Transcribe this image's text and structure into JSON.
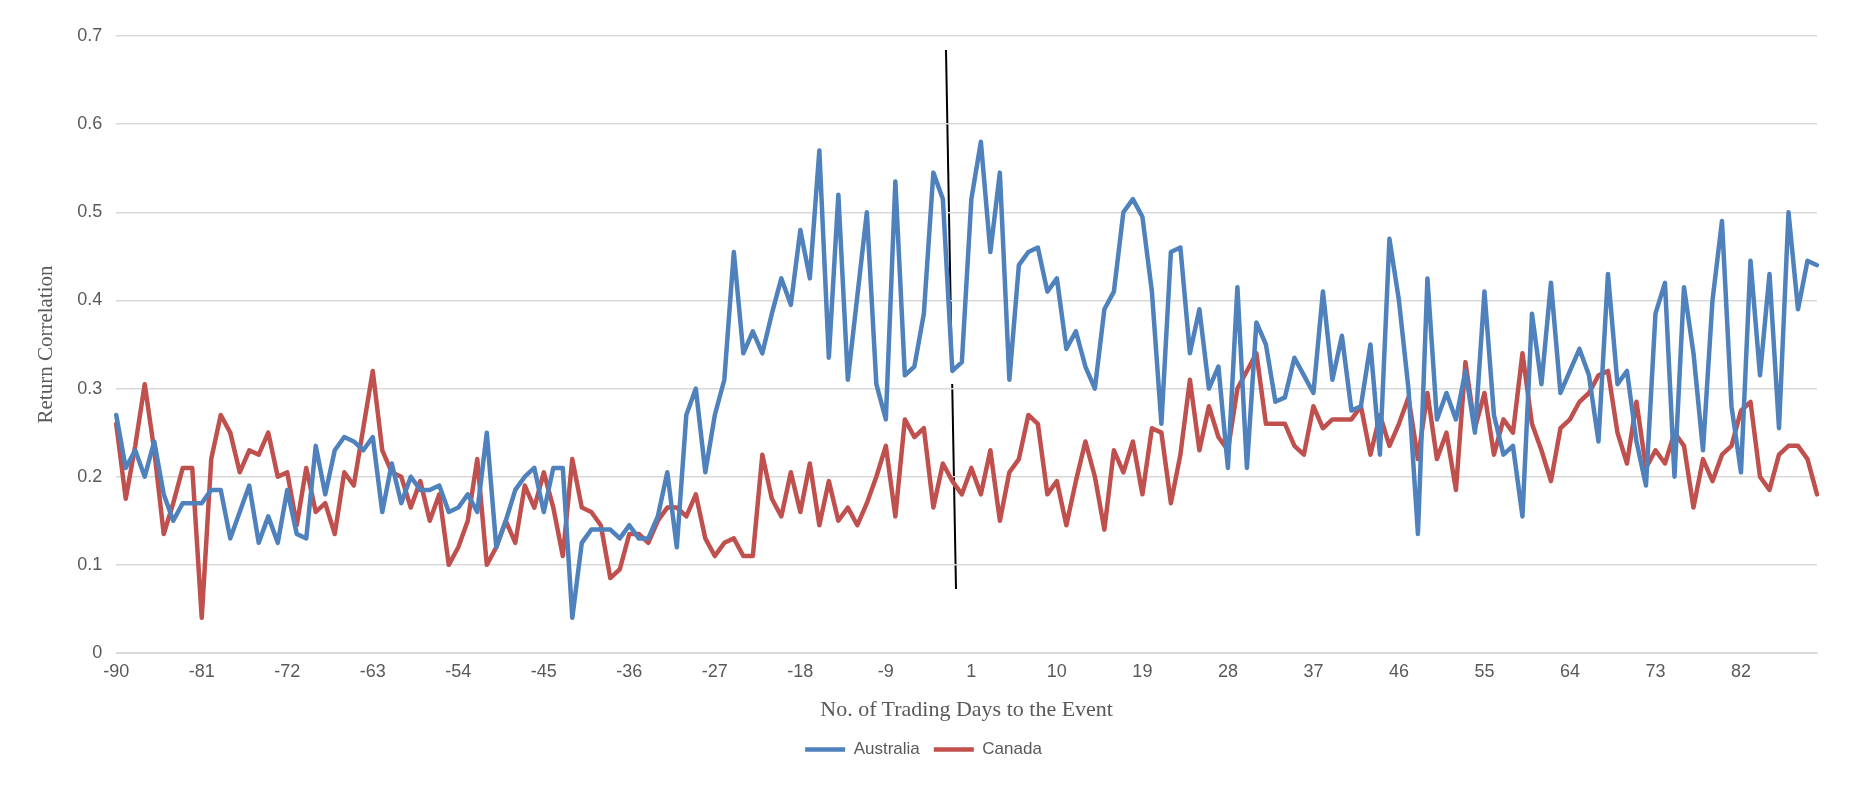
{
  "chart_data": {
    "type": "line",
    "xlabel": "No. of Trading Days to the Event",
    "ylabel": "Return Correlation",
    "categories": [
      "-90",
      null,
      null,
      null,
      null,
      null,
      null,
      null,
      null,
      "-81",
      null,
      null,
      null,
      null,
      null,
      null,
      null,
      null,
      "-72",
      null,
      null,
      null,
      null,
      null,
      null,
      null,
      null,
      "-63",
      null,
      null,
      null,
      null,
      null,
      null,
      null,
      null,
      "-54",
      null,
      null,
      null,
      null,
      null,
      null,
      null,
      null,
      "-45",
      null,
      null,
      null,
      null,
      null,
      null,
      null,
      null,
      "-36",
      null,
      null,
      null,
      null,
      null,
      null,
      null,
      null,
      "-27",
      null,
      null,
      null,
      null,
      null,
      null,
      null,
      null,
      "-18",
      null,
      null,
      null,
      null,
      null,
      null,
      null,
      null,
      "-9",
      null,
      null,
      null,
      null,
      null,
      null,
      null,
      null,
      "1",
      null,
      null,
      null,
      null,
      null,
      null,
      null,
      null,
      "10",
      null,
      null,
      null,
      null,
      null,
      null,
      null,
      null,
      "19",
      null,
      null,
      null,
      null,
      null,
      null,
      null,
      null,
      "28",
      null,
      null,
      null,
      null,
      null,
      null,
      null,
      null,
      "37",
      null,
      null,
      null,
      null,
      null,
      null,
      null,
      null,
      "46",
      null,
      null,
      null,
      null,
      null,
      null,
      null,
      null,
      "55",
      null,
      null,
      null,
      null,
      null,
      null,
      null,
      null,
      "64",
      null,
      null,
      null,
      null,
      null,
      null,
      null,
      null,
      "73",
      null,
      null,
      null,
      null,
      null,
      null,
      null,
      null,
      "82",
      null,
      null,
      null,
      null,
      null,
      null,
      null,
      null
    ],
    "series": [
      {
        "name": "Australia",
        "color": "#4f81bd",
        "values": [
          0.27,
          0.21,
          0.23,
          0.2,
          0.24,
          0.18,
          0.15,
          0.17,
          0.17,
          0.17,
          0.185,
          0.185,
          0.13,
          0.16,
          0.19,
          0.125,
          0.155,
          0.125,
          0.185,
          0.135,
          0.13,
          0.235,
          0.18,
          0.23,
          0.245,
          0.24,
          0.23,
          0.245,
          0.16,
          0.215,
          0.17,
          0.2,
          0.185,
          0.185,
          0.19,
          0.16,
          0.165,
          0.18,
          0.16,
          0.25,
          0.12,
          0.15,
          0.185,
          0.2,
          0.21,
          0.16,
          0.21,
          0.21,
          0.04,
          0.125,
          0.14,
          0.14,
          0.14,
          0.13,
          0.145,
          0.13,
          0.13,
          0.155,
          0.205,
          0.12,
          0.27,
          0.3,
          0.205,
          0.27,
          0.31,
          0.455,
          0.34,
          0.365,
          0.34,
          0.385,
          0.425,
          0.395,
          0.48,
          0.425,
          0.57,
          0.335,
          0.52,
          0.31,
          0.405,
          0.5,
          0.305,
          0.265,
          0.535,
          0.315,
          0.325,
          0.385,
          0.545,
          0.515,
          0.32,
          0.33,
          0.515,
          0.58,
          0.455,
          0.545,
          0.31,
          0.44,
          0.455,
          0.46,
          0.41,
          0.425,
          0.345,
          0.365,
          0.325,
          0.3,
          0.39,
          0.41,
          0.5,
          0.515,
          0.495,
          0.41,
          0.26,
          0.455,
          0.46,
          0.34,
          0.39,
          0.3,
          0.325,
          0.21,
          0.415,
          0.21,
          0.375,
          0.35,
          0.285,
          0.29,
          0.335,
          0.315,
          0.295,
          0.41,
          0.31,
          0.36,
          0.275,
          0.28,
          0.35,
          0.225,
          0.47,
          0.4,
          0.3,
          0.135,
          0.425,
          0.265,
          0.295,
          0.265,
          0.32,
          0.25,
          0.41,
          0.27,
          0.225,
          0.235,
          0.155,
          0.385,
          0.305,
          0.42,
          0.295,
          0.32,
          0.345,
          0.315,
          0.24,
          0.43,
          0.305,
          0.32,
          0.24,
          0.19,
          0.385,
          0.42,
          0.2,
          0.415,
          0.34,
          0.23,
          0.4,
          0.49,
          0.28,
          0.205,
          0.445,
          0.315,
          0.43,
          0.255,
          0.5,
          0.39,
          0.445,
          0.44
        ]
      },
      {
        "name": "Canada",
        "color": "#c0504d",
        "values": [
          0.26,
          0.175,
          0.235,
          0.305,
          0.23,
          0.135,
          0.17,
          0.21,
          0.21,
          0.04,
          0.22,
          0.27,
          0.25,
          0.205,
          0.23,
          0.225,
          0.25,
          0.2,
          0.205,
          0.145,
          0.21,
          0.16,
          0.17,
          0.135,
          0.205,
          0.19,
          0.255,
          0.32,
          0.23,
          0.205,
          0.2,
          0.165,
          0.195,
          0.15,
          0.18,
          0.1,
          0.12,
          0.15,
          0.22,
          0.1,
          0.12,
          0.15,
          0.125,
          0.19,
          0.165,
          0.205,
          0.165,
          0.11,
          0.22,
          0.165,
          0.16,
          0.145,
          0.085,
          0.095,
          0.135,
          0.135,
          0.125,
          0.15,
          0.165,
          0.165,
          0.155,
          0.18,
          0.13,
          0.11,
          0.125,
          0.13,
          0.11,
          0.11,
          0.225,
          0.175,
          0.155,
          0.205,
          0.16,
          0.215,
          0.145,
          0.195,
          0.15,
          0.165,
          0.145,
          0.17,
          0.2,
          0.235,
          0.155,
          0.265,
          0.245,
          0.255,
          0.165,
          0.215,
          0.195,
          0.18,
          0.21,
          0.18,
          0.23,
          0.15,
          0.205,
          0.22,
          0.27,
          0.26,
          0.18,
          0.195,
          0.145,
          0.195,
          0.24,
          0.2,
          0.14,
          0.23,
          0.205,
          0.24,
          0.18,
          0.255,
          0.25,
          0.17,
          0.225,
          0.31,
          0.23,
          0.28,
          0.245,
          0.23,
          0.3,
          0.32,
          0.34,
          0.26,
          0.26,
          0.26,
          0.235,
          0.225,
          0.28,
          0.255,
          0.265,
          0.265,
          0.265,
          0.28,
          0.225,
          0.27,
          0.235,
          0.26,
          0.29,
          0.22,
          0.295,
          0.22,
          0.25,
          0.185,
          0.33,
          0.255,
          0.295,
          0.225,
          0.265,
          0.25,
          0.34,
          0.26,
          0.23,
          0.195,
          0.255,
          0.265,
          0.285,
          0.295,
          0.315,
          0.32,
          0.25,
          0.215,
          0.285,
          0.21,
          0.23,
          0.215,
          0.25,
          0.235,
          0.165,
          0.22,
          0.195,
          0.225,
          0.235,
          0.275,
          0.285,
          0.2,
          0.185,
          0.225,
          0.235,
          0.235,
          0.22,
          0.18
        ]
      }
    ],
    "ylim": [
      0,
      0.7
    ],
    "yticks": [
      0,
      0.1,
      0.2,
      0.3,
      0.4,
      0.5,
      0.6,
      0.7
    ],
    "grid": "y",
    "legend": "bottom",
    "marker": "none",
    "line_style": "solid"
  }
}
